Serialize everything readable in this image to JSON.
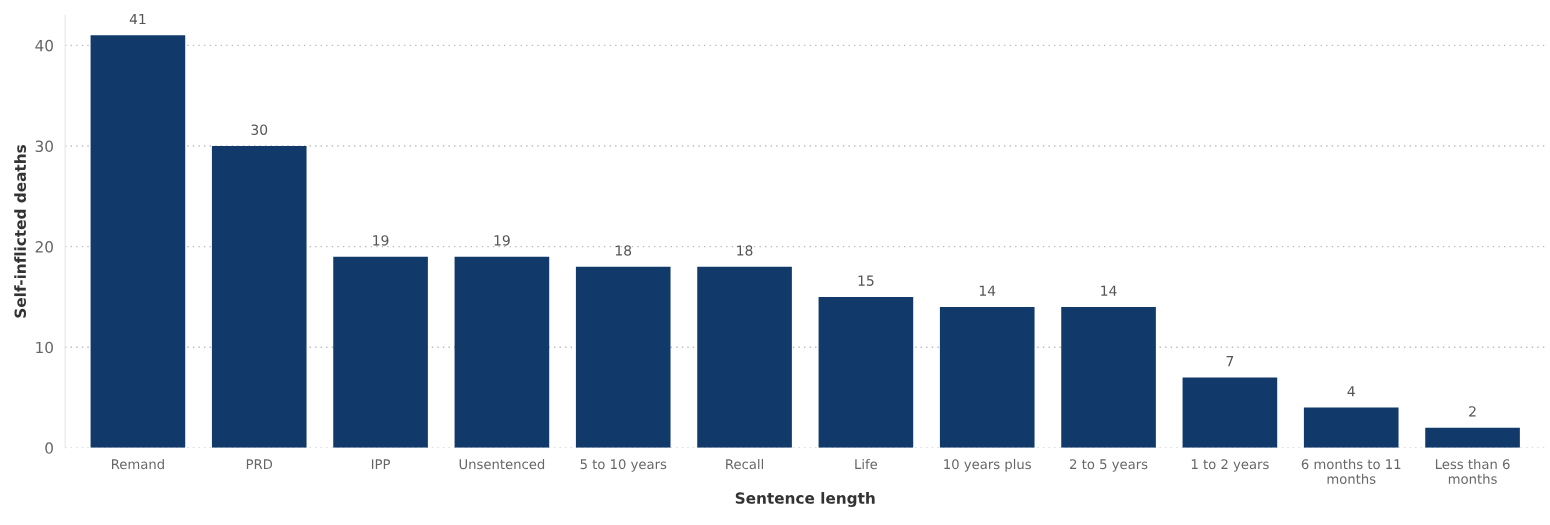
{
  "chart_data": {
    "type": "bar",
    "xlabel": "Sentence length",
    "ylabel": "Self-inflicted deaths",
    "categories": [
      "Remand",
      "PRD",
      "IPP",
      "Unsentenced",
      "5 to 10 years",
      "Recall",
      "Life",
      "10 years plus",
      "2 to 5 years",
      "1 to 2 years",
      "6 months to 11 months",
      "Less than 6 months"
    ],
    "values": [
      41,
      30,
      19,
      19,
      18,
      18,
      15,
      14,
      14,
      7,
      4,
      2
    ],
    "color": "#113a6b",
    "ylim": [
      0,
      43
    ],
    "yticks": [
      0,
      10,
      20,
      30,
      40
    ],
    "grid": "y",
    "data_labels": true
  }
}
